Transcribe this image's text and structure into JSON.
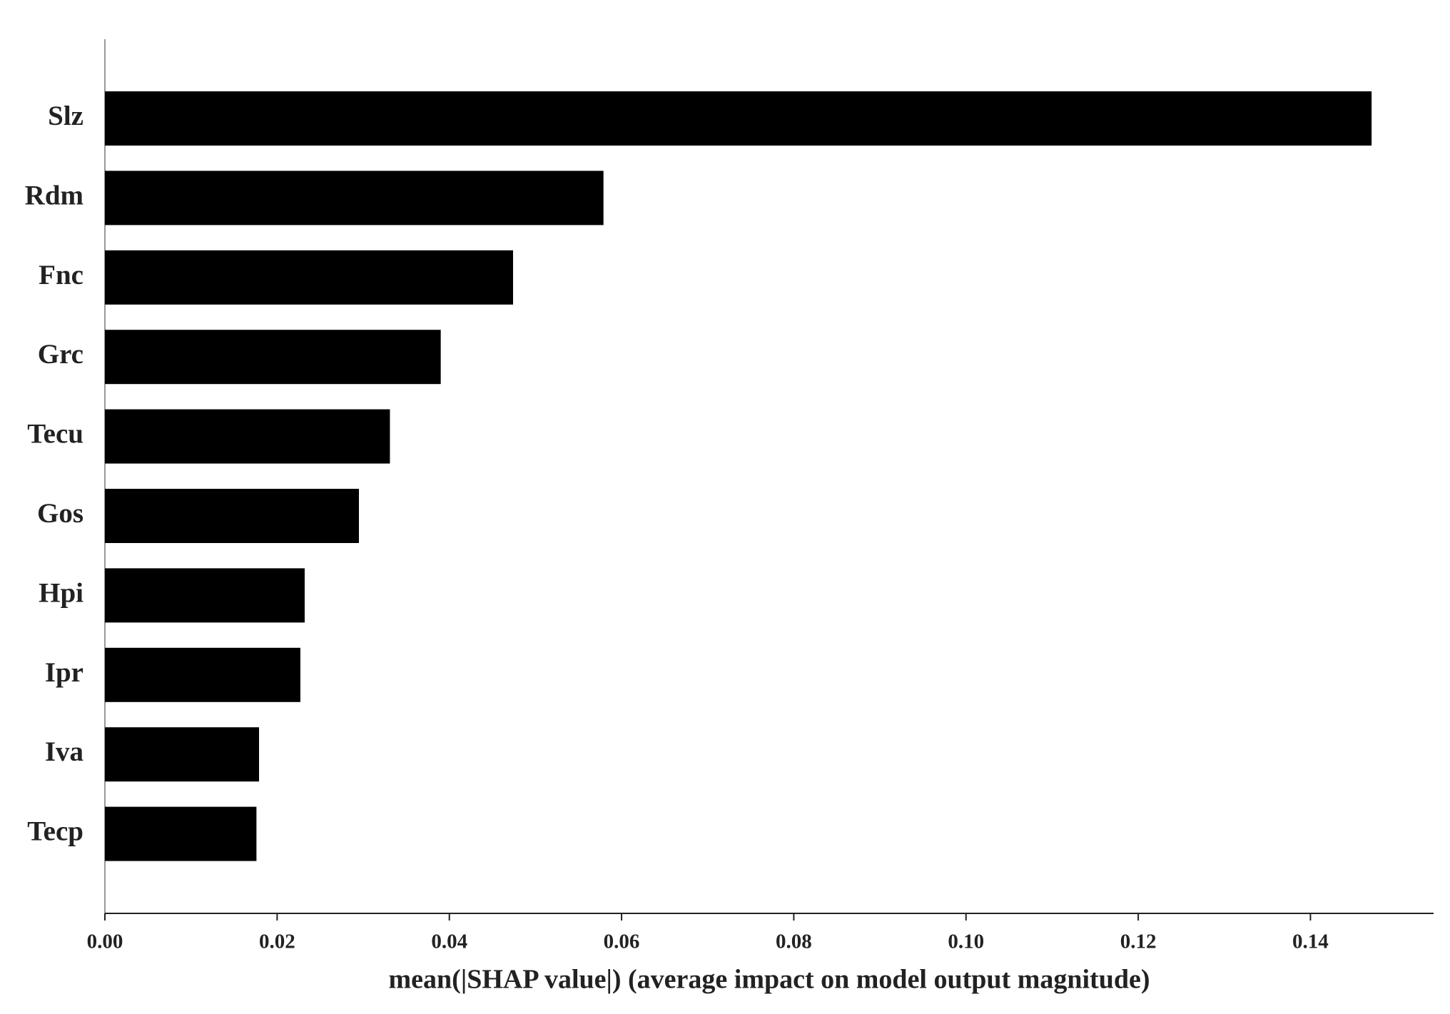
{
  "chart_data": {
    "type": "bar",
    "orientation": "horizontal",
    "x_label": "mean(|SHAP value|) (average impact on model output magnitude)",
    "categories": [
      "Slz",
      "Rdm",
      "Fnc",
      "Grc",
      "Tecu",
      "Gos",
      "Hpi",
      "Ipr",
      "Iva",
      "Tecp"
    ],
    "values": [
      0.1471,
      0.0579,
      0.0474,
      0.039,
      0.0331,
      0.0295,
      0.0232,
      0.0227,
      0.0179,
      0.0176
    ],
    "color": "#000000",
    "xlim": [
      0,
      0.1543
    ],
    "xticks": [
      {
        "value": 0,
        "label": "0.00"
      },
      0.02,
      0.04,
      0.06,
      0.08,
      {
        "value": 0.1,
        "label": "0.10"
      },
      0.12,
      0.14
    ]
  }
}
